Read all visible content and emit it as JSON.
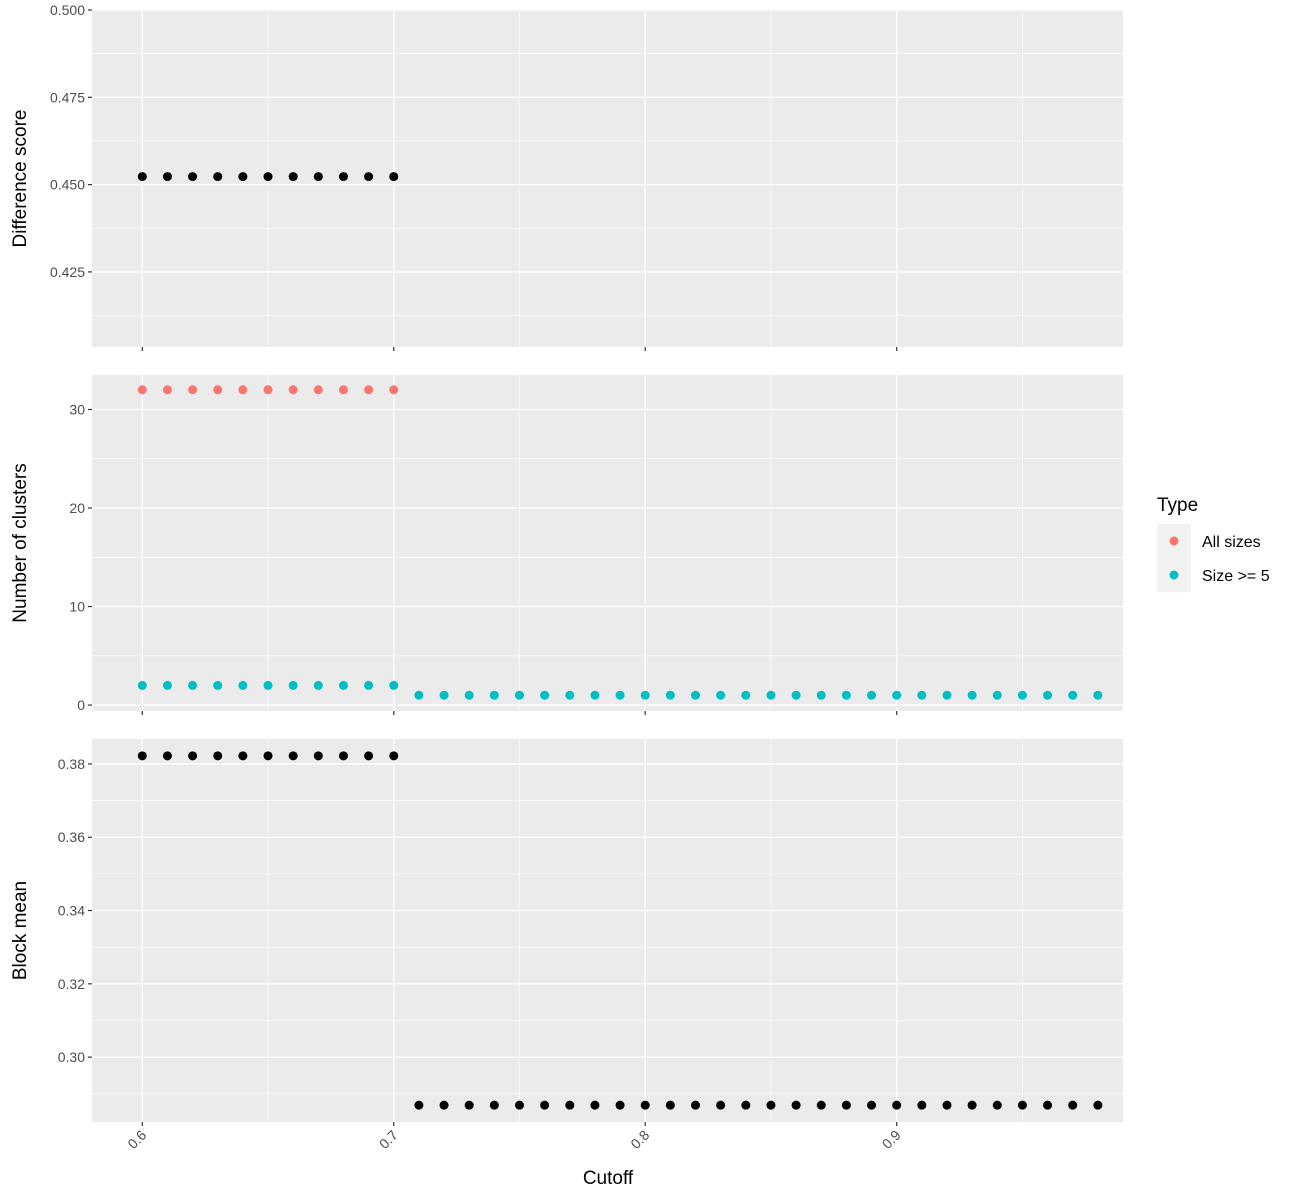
{
  "xlabel": "Cutoff",
  "x_ticks": [
    "0.6",
    "0.7",
    "0.8",
    "0.9"
  ],
  "legend": {
    "title": "Type",
    "entries": [
      {
        "label": "All sizes",
        "color": "#f8766d"
      },
      {
        "label": "Size >= 5",
        "color": "#00bfc4"
      }
    ]
  },
  "colors": {
    "panel_bg": "#ebebeb",
    "grid": "#ffffff",
    "default_point": "#000000"
  },
  "chart_data": [
    {
      "type": "scatter",
      "ylabel": "Difference score",
      "xlim": [
        0.58,
        0.99
      ],
      "ylim": [
        0.4035,
        0.5
      ],
      "y_ticks": [
        "0.425",
        "0.450",
        "0.475",
        "0.500"
      ],
      "series": [
        {
          "color": "#000000",
          "x": [
            0.6,
            0.61,
            0.62,
            0.63,
            0.64,
            0.65,
            0.66,
            0.67,
            0.68,
            0.69,
            0.7
          ],
          "y": [
            0.4523,
            0.4523,
            0.4523,
            0.4523,
            0.4523,
            0.4523,
            0.4523,
            0.4523,
            0.4523,
            0.4523,
            0.4523
          ]
        }
      ]
    },
    {
      "type": "scatter",
      "ylabel": "Number of clusters",
      "xlim": [
        0.58,
        0.99
      ],
      "ylim": [
        -0.6,
        33.5
      ],
      "y_ticks": [
        "0",
        "10",
        "20",
        "30"
      ],
      "series": [
        {
          "name": "All sizes",
          "color": "#f8766d",
          "x": [
            0.6,
            0.61,
            0.62,
            0.63,
            0.64,
            0.65,
            0.66,
            0.67,
            0.68,
            0.69,
            0.7
          ],
          "y": [
            32,
            32,
            32,
            32,
            32,
            32,
            32,
            32,
            32,
            32,
            32
          ]
        },
        {
          "name": "Size >= 5",
          "color": "#00bfc4",
          "x": [
            0.6,
            0.61,
            0.62,
            0.63,
            0.64,
            0.65,
            0.66,
            0.67,
            0.68,
            0.69,
            0.7,
            0.71,
            0.72,
            0.73,
            0.74,
            0.75,
            0.76,
            0.77,
            0.78,
            0.79,
            0.8,
            0.81,
            0.82,
            0.83,
            0.84,
            0.85,
            0.86,
            0.87,
            0.88,
            0.89,
            0.9,
            0.91,
            0.92,
            0.93,
            0.94,
            0.95,
            0.96,
            0.97,
            0.98
          ],
          "y": [
            2,
            2,
            2,
            2,
            2,
            2,
            2,
            2,
            2,
            2,
            2,
            1,
            1,
            1,
            1,
            1,
            1,
            1,
            1,
            1,
            1,
            1,
            1,
            1,
            1,
            1,
            1,
            1,
            1,
            1,
            1,
            1,
            1,
            1,
            1,
            1,
            1,
            1,
            1
          ]
        }
      ]
    },
    {
      "type": "scatter",
      "ylabel": "Block mean",
      "xlim": [
        0.58,
        0.99
      ],
      "ylim": [
        0.2823,
        0.3868
      ],
      "y_ticks": [
        "0.30",
        "0.32",
        "0.34",
        "0.36",
        "0.38"
      ],
      "series": [
        {
          "color": "#000000",
          "x": [
            0.6,
            0.61,
            0.62,
            0.63,
            0.64,
            0.65,
            0.66,
            0.67,
            0.68,
            0.69,
            0.7,
            0.71,
            0.72,
            0.73,
            0.74,
            0.75,
            0.76,
            0.77,
            0.78,
            0.79,
            0.8,
            0.81,
            0.82,
            0.83,
            0.84,
            0.85,
            0.86,
            0.87,
            0.88,
            0.89,
            0.9,
            0.91,
            0.92,
            0.93,
            0.94,
            0.95,
            0.96,
            0.97,
            0.98
          ],
          "y": [
            0.3822,
            0.3822,
            0.3822,
            0.3822,
            0.3822,
            0.3822,
            0.3822,
            0.3822,
            0.3822,
            0.3822,
            0.3822,
            0.2869,
            0.2869,
            0.2869,
            0.2869,
            0.2869,
            0.2869,
            0.2869,
            0.2869,
            0.2869,
            0.2869,
            0.2869,
            0.2869,
            0.2869,
            0.2869,
            0.2869,
            0.2869,
            0.2869,
            0.2869,
            0.2869,
            0.2869,
            0.2869,
            0.2869,
            0.2869,
            0.2869,
            0.2869,
            0.2869,
            0.2869,
            0.2869
          ]
        }
      ]
    }
  ]
}
